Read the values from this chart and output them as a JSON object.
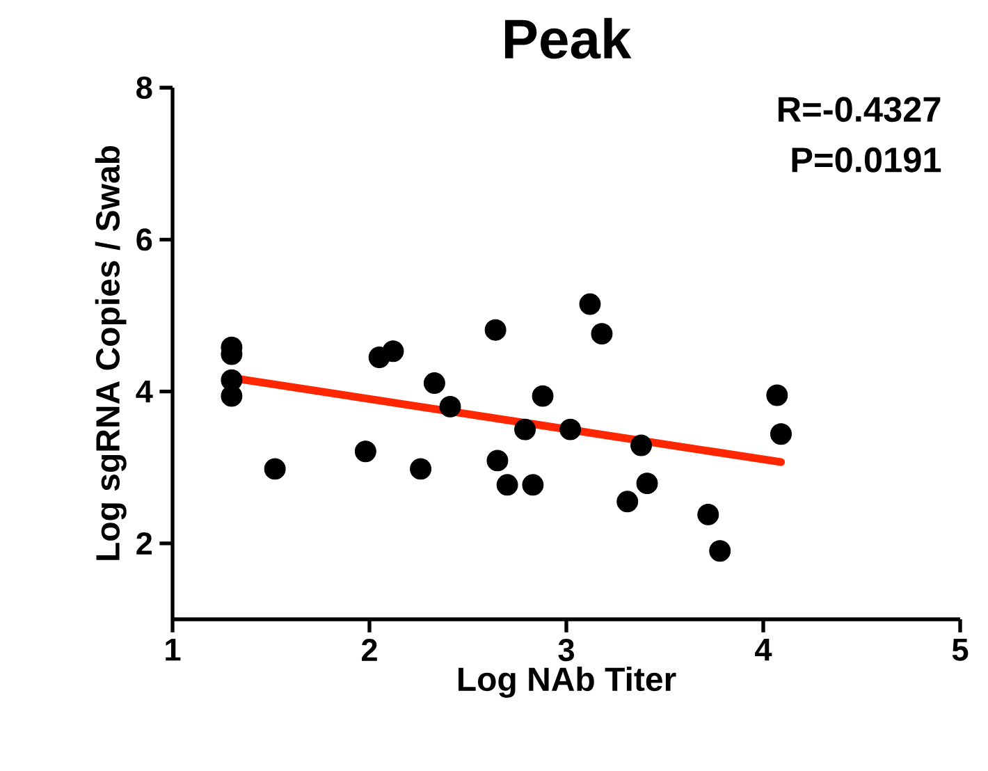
{
  "chart_data": {
    "type": "scatter",
    "title": "Peak",
    "xlabel": "Log NAb Titer",
    "ylabel": "Log sgRNA Copies / Swab",
    "annotations": [
      "R=-0.4327",
      "P=0.0191"
    ],
    "xlim": [
      1,
      5
    ],
    "ylim": [
      1,
      8
    ],
    "xticks": [
      1,
      2,
      3,
      4,
      5
    ],
    "yticks": [
      2,
      4,
      6,
      8
    ],
    "grid": false,
    "marker": "circle",
    "series": [
      {
        "color": "#000000",
        "x": [
          1.3,
          1.3,
          1.3,
          1.3,
          1.52,
          2.05,
          2.12,
          1.98,
          2.33,
          2.41,
          2.26,
          2.64,
          2.65,
          2.7,
          2.83,
          2.79,
          2.88,
          3.02,
          3.12,
          3.18,
          3.38,
          3.41,
          3.31,
          3.72,
          3.78,
          4.07,
          4.09
        ],
        "values": [
          4.58,
          4.49,
          4.15,
          3.94,
          2.98,
          4.45,
          4.53,
          3.21,
          4.11,
          3.8,
          2.98,
          4.81,
          3.09,
          2.77,
          2.77,
          3.5,
          3.94,
          3.5,
          5.15,
          4.76,
          3.29,
          2.79,
          2.55,
          2.38,
          1.9,
          3.95,
          3.44
        ]
      },
      {
        "type": "line",
        "marker": "none",
        "color": "#ff2600",
        "x": [
          1.3,
          4.09
        ],
        "values": [
          4.18,
          3.07
        ]
      }
    ]
  }
}
